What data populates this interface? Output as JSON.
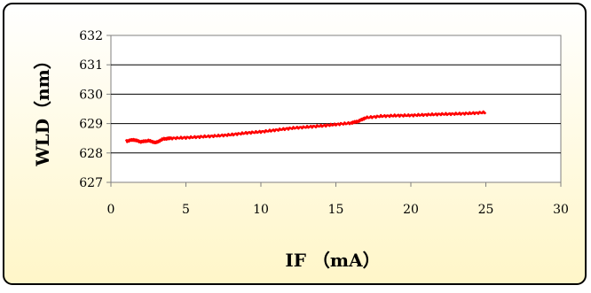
{
  "chart_data": {
    "type": "line",
    "title": "",
    "xlabel": "IF （mA）",
    "ylabel": "WLD（nm）",
    "xlim": [
      0,
      30
    ],
    "ylim": [
      627,
      632
    ],
    "xticks": [
      "0",
      "5",
      "10",
      "15",
      "20",
      "25",
      "30"
    ],
    "yticks": [
      "627",
      "628",
      "629",
      "630",
      "631",
      "632"
    ],
    "grid": "horizontal",
    "legend": "none",
    "line_color": "#ff0000",
    "plot_background": "#ffffff",
    "frame_background": "#fffbe6",
    "series": [
      {
        "x": [
          1.0,
          1.5,
          2.0,
          2.5,
          3.0,
          3.5,
          4.0,
          5.0,
          6.0,
          7.0,
          8.0,
          9.0,
          10.0,
          11.0,
          12.0,
          13.0,
          14.0,
          15.0,
          16.0,
          16.5,
          17.0,
          18.0,
          19.0,
          20.0,
          21.0,
          22.0,
          23.0,
          24.0,
          25.0
        ],
        "y": [
          628.4,
          628.45,
          628.38,
          628.42,
          628.35,
          628.48,
          628.5,
          628.52,
          628.55,
          628.58,
          628.62,
          628.68,
          628.72,
          628.78,
          628.84,
          628.88,
          628.92,
          628.97,
          629.02,
          629.08,
          629.2,
          629.25,
          629.27,
          629.28,
          629.3,
          629.32,
          629.33,
          629.35,
          629.38
        ]
      }
    ]
  }
}
